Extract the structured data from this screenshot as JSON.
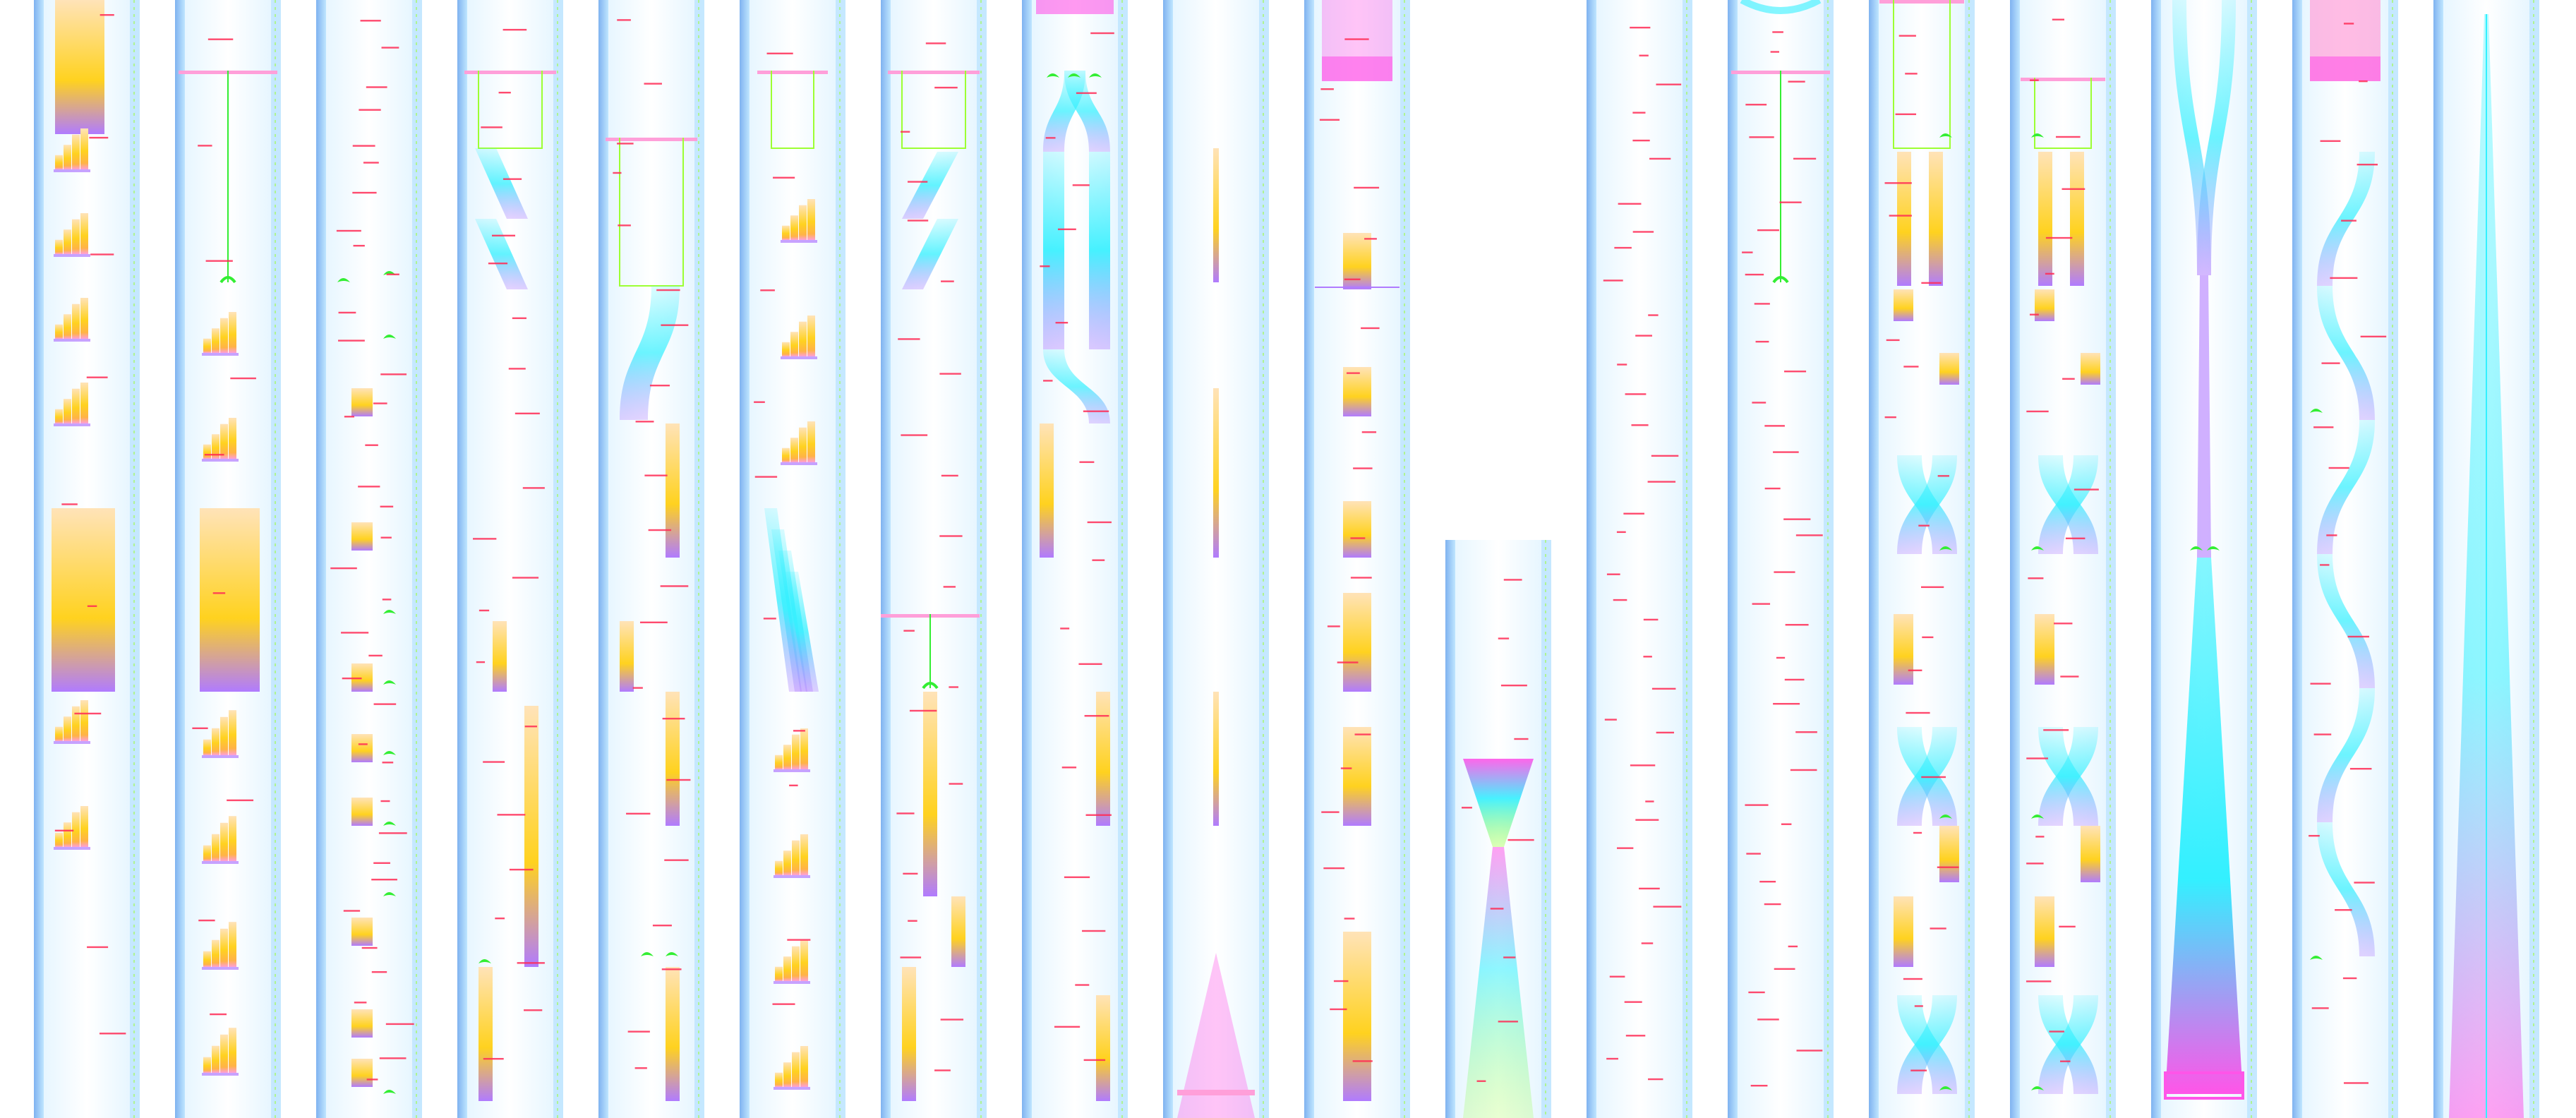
{
  "palette": {
    "background": "#ffffff",
    "rail_dark": "#7fb2f0",
    "rail_light": "#bfe6ff",
    "lane": "#e7f6ff",
    "cyan": "#33f0ff",
    "magenta": "#ff55e8",
    "violet": "#b07bff",
    "yellow": "#ffd21f",
    "orange": "#ffb347",
    "peach": "#ffe3b8",
    "pink": "#ff9fd9",
    "green": "#33ee33",
    "lime": "#9cff33",
    "red_text": "#ff2a55",
    "coral": "#ff8d7a"
  },
  "columns": [
    {
      "kind": "stacked-bars",
      "labels": "sparse"
    },
    {
      "kind": "bars-with-plunger",
      "labels": "sparse"
    },
    {
      "kind": "scatter-blocks",
      "labels": "dense"
    },
    {
      "kind": "ribbons-diagonal",
      "labels": "medium"
    },
    {
      "kind": "fork-ribbons",
      "labels": "medium"
    },
    {
      "kind": "stacked-bars-zigzag",
      "labels": "sparse"
    },
    {
      "kind": "diagonal-and-blocks",
      "labels": "medium"
    },
    {
      "kind": "loop-ribbons",
      "labels": "medium"
    },
    {
      "kind": "thin-needles",
      "labels": "none"
    },
    {
      "kind": "block-stack",
      "labels": "medium"
    },
    {
      "kind": "funnel-short",
      "labels": "sparse"
    },
    {
      "kind": "labels-only",
      "labels": "dense"
    },
    {
      "kind": "plunger-labels",
      "labels": "dense"
    },
    {
      "kind": "curved-ribbons",
      "labels": "medium"
    },
    {
      "kind": "curved-ribbons-alt",
      "labels": "medium"
    },
    {
      "kind": "tall-funnel",
      "labels": "none"
    },
    {
      "kind": "s-curves",
      "labels": "medium"
    },
    {
      "kind": "spike",
      "labels": "none"
    }
  ]
}
